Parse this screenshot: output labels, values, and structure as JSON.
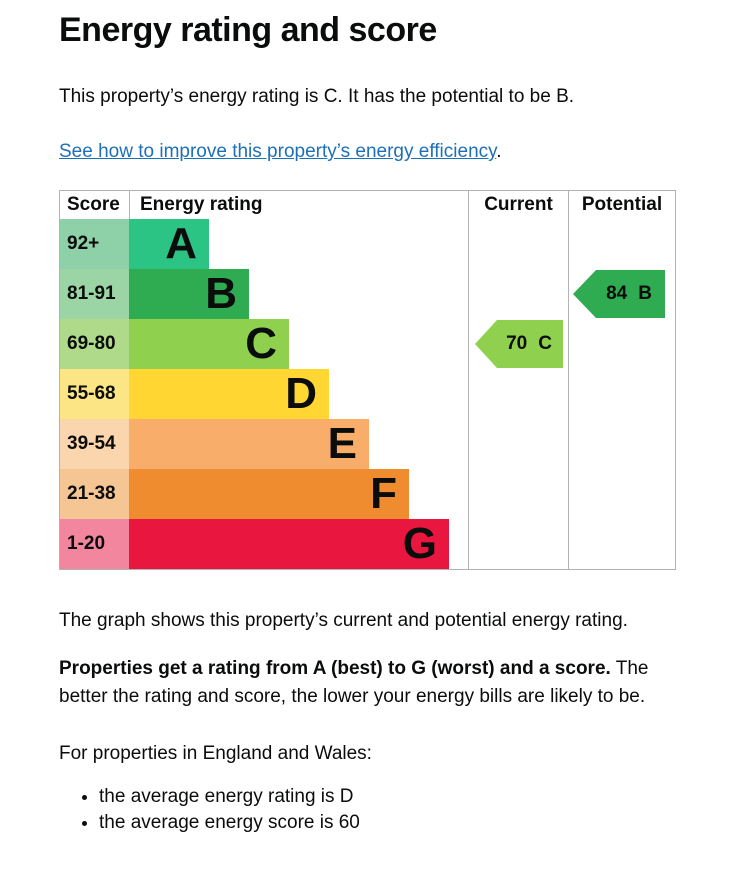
{
  "page": {
    "title": "Energy rating and score"
  },
  "intro": {
    "text": "This property’s energy rating is C. It has the potential to be B.",
    "link_text": "See how to improve this property’s energy efficiency",
    "link_suffix": "."
  },
  "chart": {
    "header": {
      "score": "Score",
      "rating": "Energy rating",
      "current": "Current",
      "potential": "Potential"
    },
    "bands": [
      {
        "score": "92+",
        "letter": "A",
        "bar_color": "#2cc484",
        "score_color": "#8ed1a9"
      },
      {
        "score": "81-91",
        "letter": "B",
        "bar_color": "#2fab51",
        "score_color": "#9bd5a6"
      },
      {
        "score": "69-80",
        "letter": "C",
        "bar_color": "#8fd14e",
        "score_color": "#aeda8a"
      },
      {
        "score": "55-68",
        "letter": "D",
        "bar_color": "#ffd632",
        "score_color": "#fbe584"
      },
      {
        "score": "39-54",
        "letter": "E",
        "bar_color": "#f9ad6b",
        "score_color": "#fbd5ae"
      },
      {
        "score": "21-38",
        "letter": "F",
        "bar_color": "#ef8c30",
        "score_color": "#f5c593"
      },
      {
        "score": "1-20",
        "letter": "G",
        "bar_color": "#e9173f",
        "score_color": "#f2869e"
      }
    ],
    "current": {
      "value": "70",
      "letter": "C",
      "color": "#8fd14e"
    },
    "potential": {
      "value": "84",
      "letter": "B",
      "color": "#2fab51"
    }
  },
  "chart_data": {
    "type": "bar",
    "title": "Energy rating and score",
    "columns": [
      "Score",
      "Energy rating",
      "Current",
      "Potential"
    ],
    "bands": [
      {
        "letter": "A",
        "range": "92+",
        "min": 92,
        "max": 100
      },
      {
        "letter": "B",
        "range": "81-91",
        "min": 81,
        "max": 91
      },
      {
        "letter": "C",
        "range": "69-80",
        "min": 69,
        "max": 80
      },
      {
        "letter": "D",
        "range": "55-68",
        "min": 55,
        "max": 68
      },
      {
        "letter": "E",
        "range": "39-54",
        "min": 39,
        "max": 54
      },
      {
        "letter": "F",
        "range": "21-38",
        "min": 21,
        "max": 38
      },
      {
        "letter": "G",
        "range": "1-20",
        "min": 1,
        "max": 20
      }
    ],
    "bar_relative_widths": [
      1,
      1.5,
      2,
      2.5,
      3,
      3.5,
      4
    ],
    "current": {
      "score": 70,
      "rating": "C"
    },
    "potential": {
      "score": 84,
      "rating": "B"
    }
  },
  "footer": {
    "graph_caption": "The graph shows this property’s current and potential energy rating.",
    "rating_bold": "Properties get a rating from A (best) to G (worst) and a score.",
    "rating_rest": " The better the rating and score, the lower your energy bills are likely to be.",
    "region_line": "For properties in England and Wales:",
    "bullets": [
      "the average energy rating is D",
      "the average energy score is 60"
    ]
  },
  "colors": {
    "link": "#1d70b8",
    "text": "#0b0c0c",
    "border": "#b1b4b6"
  }
}
